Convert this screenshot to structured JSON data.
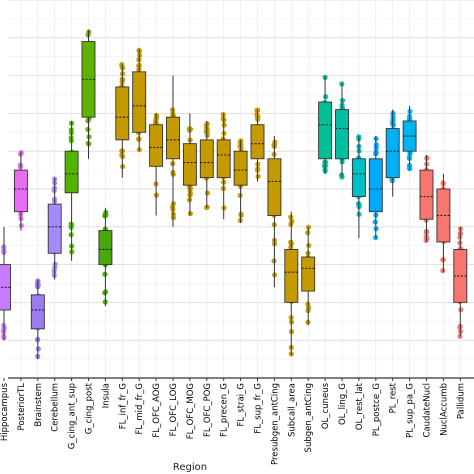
{
  "chart_data": {
    "type": "boxplot",
    "xlabel": "Region",
    "ylabel": "",
    "ylim": [
      0,
      1
    ],
    "grid": true,
    "categories": [
      "Hippocampus",
      "PosteriorTL",
      "Brainstem",
      "Cerebellum",
      "G_cing_ant_sup",
      "G_cing_post",
      "Insula",
      "FL_inf_fr_G",
      "FL_mid_fr_G",
      "FL_OFC_AOG",
      "FL_OFC_LOG",
      "FL_OFC_MOG",
      "FL_OFC_POG",
      "FL_precen_G",
      "FL_strai_G",
      "FL_sup_fr_G",
      "Presubgen_antCing",
      "Subcall_area",
      "Subgen_antCing",
      "OL_cuneus",
      "OL_ling_G",
      "OL_rest_lat",
      "PL_postce_G",
      "PL_rest",
      "PL_sup_pa_G",
      "CaudateNucl",
      "NuclAccumb",
      "Pallidum"
    ],
    "colors": [
      "#c77cff",
      "#e76bf3",
      "#9d7aef",
      "#a58aff",
      "#53b400",
      "#5fb300",
      "#4aa80d",
      "#c49a00",
      "#c49a00",
      "#c49a00",
      "#c49a00",
      "#c49a00",
      "#c49a00",
      "#c49a00",
      "#c49a00",
      "#c49a00",
      "#c49a00",
      "#c49a00",
      "#c49a00",
      "#00c094",
      "#00c0a0",
      "#00bfc4",
      "#00a9ff",
      "#00b0f6",
      "#00b4f0",
      "#f8766d",
      "#f8766d",
      "#f8766d"
    ],
    "boxes": [
      {
        "min": 0.1,
        "q1": 0.18,
        "median": 0.24,
        "q3": 0.3,
        "max": 0.4
      },
      {
        "min": 0.39,
        "q1": 0.44,
        "median": 0.5,
        "q3": 0.55,
        "max": 0.6
      },
      {
        "min": 0.05,
        "q1": 0.13,
        "median": 0.18,
        "q3": 0.22,
        "max": 0.26
      },
      {
        "min": 0.26,
        "q1": 0.33,
        "median": 0.4,
        "q3": 0.46,
        "max": 0.53
      },
      {
        "min": 0.31,
        "q1": 0.49,
        "median": 0.54,
        "q3": 0.6,
        "max": 0.68
      },
      {
        "min": 0.58,
        "q1": 0.69,
        "median": 0.79,
        "q3": 0.89,
        "max": 0.92
      },
      {
        "min": 0.19,
        "q1": 0.3,
        "median": 0.34,
        "q3": 0.39,
        "max": 0.45
      },
      {
        "min": 0.53,
        "q1": 0.63,
        "median": 0.69,
        "q3": 0.77,
        "max": 0.83
      },
      {
        "min": 0.6,
        "q1": 0.65,
        "median": 0.72,
        "q3": 0.81,
        "max": 0.87
      },
      {
        "min": 0.43,
        "q1": 0.56,
        "median": 0.61,
        "q3": 0.67,
        "max": 0.7
      },
      {
        "min": 0.4,
        "q1": 0.58,
        "median": 0.63,
        "q3": 0.69,
        "max": 0.8
      },
      {
        "min": 0.43,
        "q1": 0.51,
        "median": 0.57,
        "q3": 0.62,
        "max": 0.7
      },
      {
        "min": 0.45,
        "q1": 0.53,
        "median": 0.57,
        "q3": 0.63,
        "max": 0.68
      },
      {
        "min": 0.42,
        "q1": 0.53,
        "median": 0.59,
        "q3": 0.63,
        "max": 0.7
      },
      {
        "min": 0.41,
        "q1": 0.51,
        "median": 0.55,
        "q3": 0.6,
        "max": 0.63
      },
      {
        "min": 0.52,
        "q1": 0.58,
        "median": 0.62,
        "q3": 0.67,
        "max": 0.71
      },
      {
        "min": 0.24,
        "q1": 0.43,
        "median": 0.52,
        "q3": 0.58,
        "max": 0.64
      },
      {
        "min": 0.06,
        "q1": 0.2,
        "median": 0.28,
        "q3": 0.34,
        "max": 0.44
      },
      {
        "min": 0.14,
        "q1": 0.23,
        "median": 0.29,
        "q3": 0.32,
        "max": 0.4
      },
      {
        "min": 0.54,
        "q1": 0.58,
        "median": 0.67,
        "q3": 0.73,
        "max": 0.8
      },
      {
        "min": 0.53,
        "q1": 0.58,
        "median": 0.66,
        "q3": 0.71,
        "max": 0.78
      },
      {
        "min": 0.37,
        "q1": 0.48,
        "median": 0.54,
        "q3": 0.58,
        "max": 0.64
      },
      {
        "min": 0.37,
        "q1": 0.44,
        "median": 0.5,
        "q3": 0.58,
        "max": 0.64
      },
      {
        "min": 0.48,
        "q1": 0.53,
        "median": 0.6,
        "q3": 0.66,
        "max": 0.71
      },
      {
        "min": 0.55,
        "q1": 0.6,
        "median": 0.64,
        "q3": 0.68,
        "max": 0.72
      },
      {
        "min": 0.36,
        "q1": 0.42,
        "median": 0.48,
        "q3": 0.55,
        "max": 0.59
      },
      {
        "min": 0.28,
        "q1": 0.36,
        "median": 0.43,
        "q3": 0.5,
        "max": 0.54
      },
      {
        "min": 0.11,
        "q1": 0.2,
        "median": 0.27,
        "q3": 0.34,
        "max": 0.4
      }
    ]
  }
}
